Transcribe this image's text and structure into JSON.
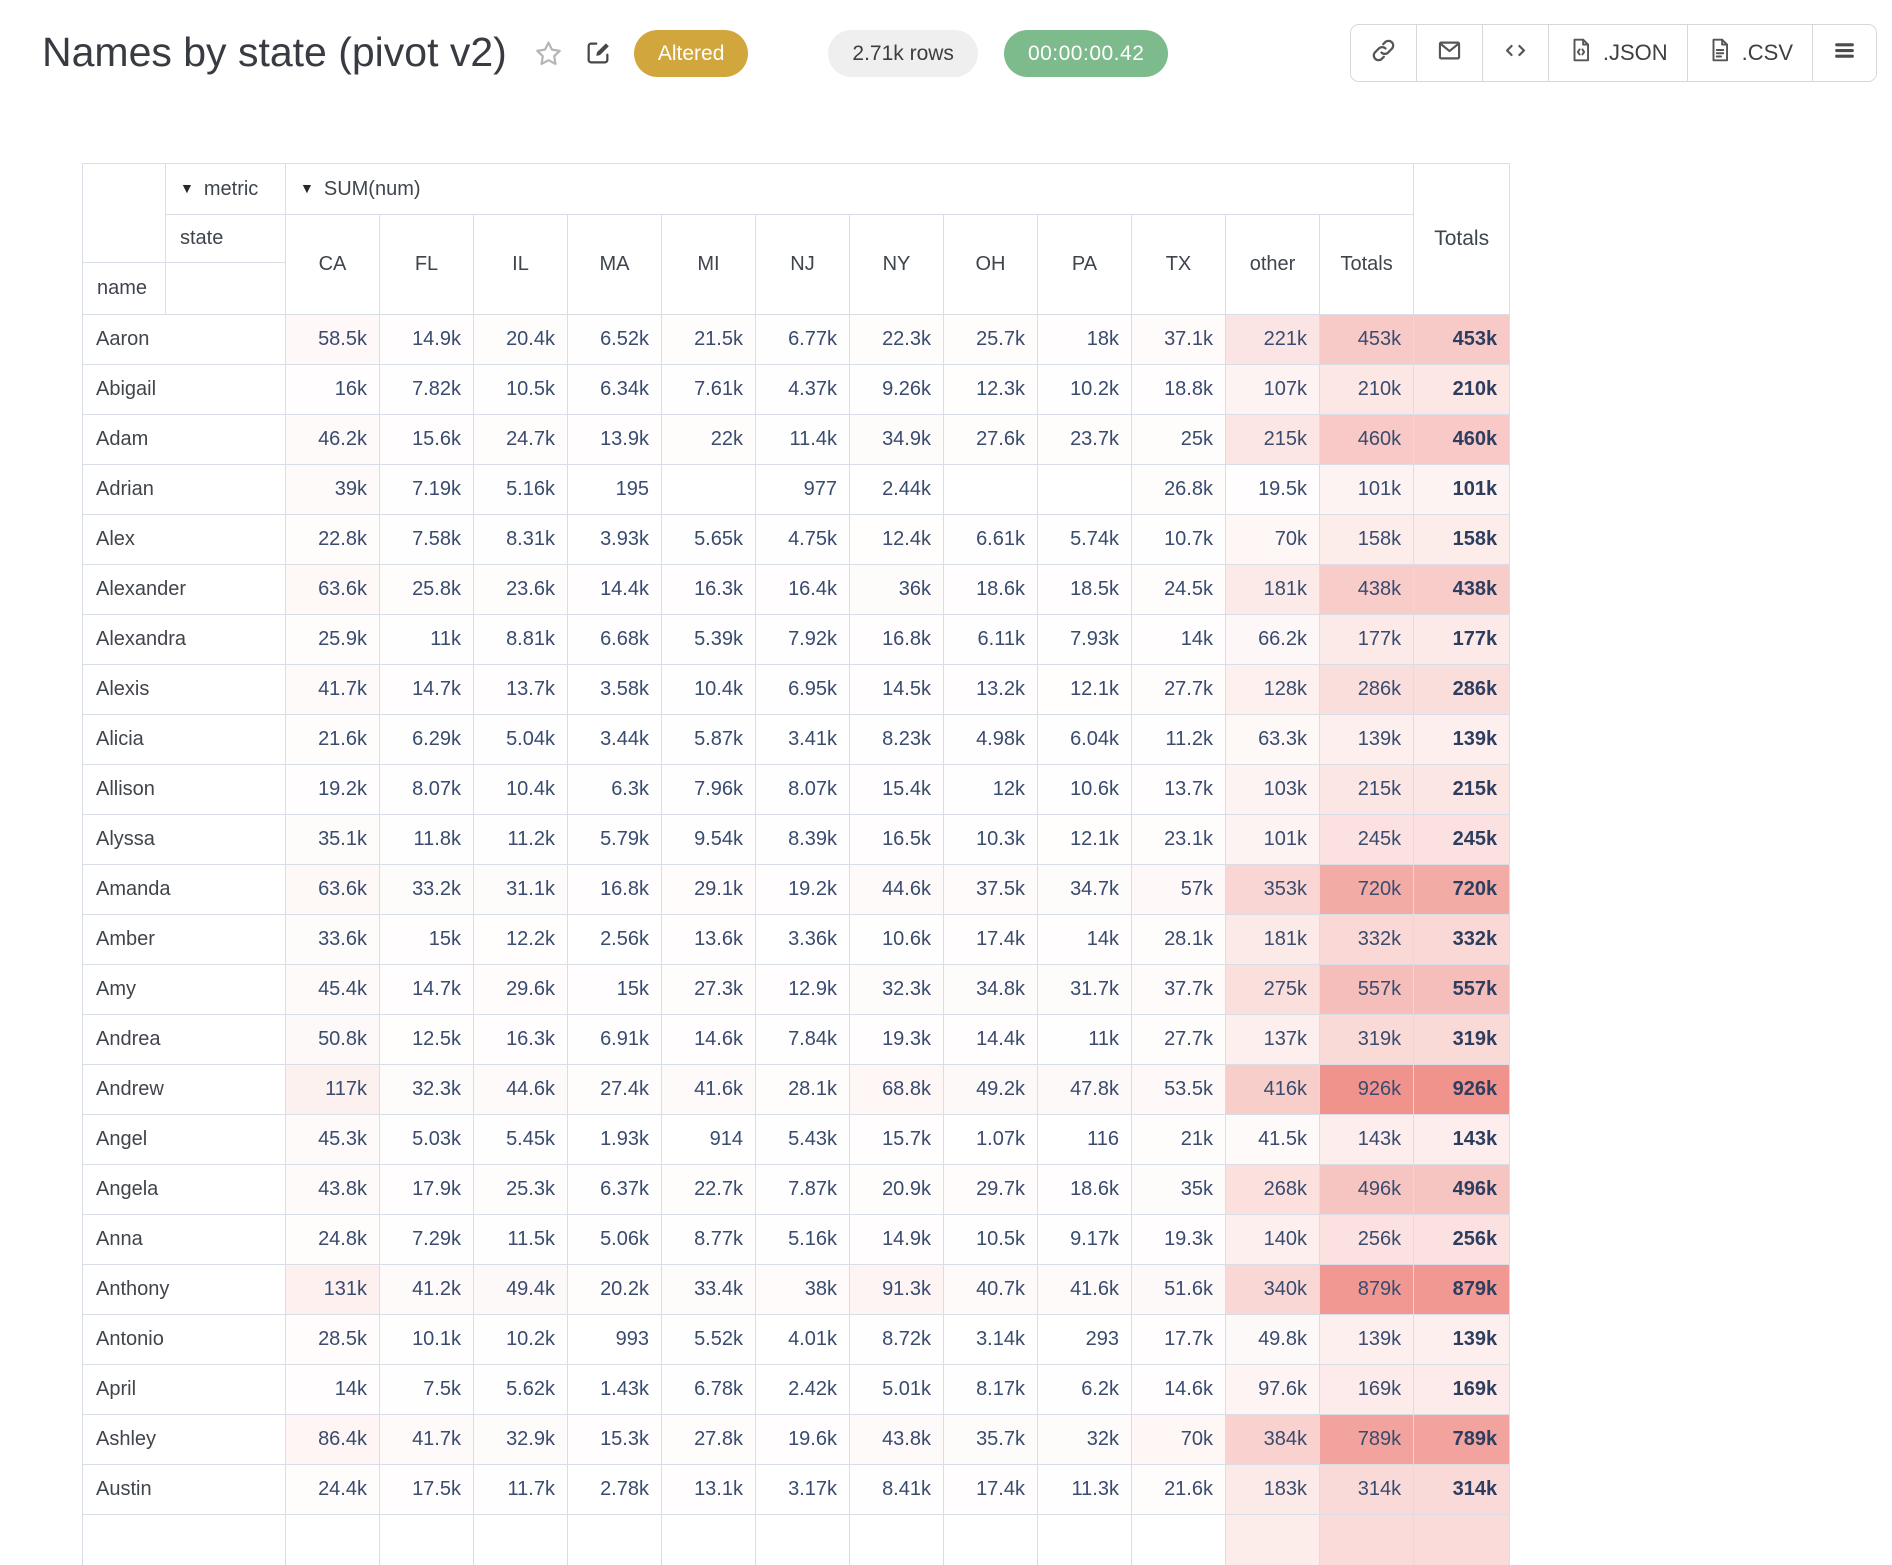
{
  "page": {
    "title": "Names by state (pivot v2)",
    "status_badge": "Altered",
    "rows_count": "2.71k rows",
    "runtime": "00:00:00.42"
  },
  "toolbar": {
    "json_label": ".JSON",
    "csv_label": ".CSV"
  },
  "icons": {
    "dropdown": "▼"
  },
  "colors": {
    "altered_bg": "#d1a63c",
    "rows_bg": "#efefef",
    "runtime_bg": "#7dba8c",
    "heat_max_color": "#f0938c",
    "border": "#d8dde6",
    "value_text": "#394b6e"
  },
  "pivot": {
    "metric_label": "metric",
    "metric_value": "SUM(num)",
    "col_dimension": "state",
    "row_dimension": "name",
    "columns": [
      "CA",
      "FL",
      "IL",
      "MA",
      "MI",
      "NJ",
      "NY",
      "OH",
      "PA",
      "TX",
      "other",
      "Totals"
    ],
    "grand_totals_label": "Totals",
    "rows": [
      {
        "name": "Aaron",
        "values": [
          "58.5k",
          "14.9k",
          "20.4k",
          "6.52k",
          "21.5k",
          "6.77k",
          "22.3k",
          "25.7k",
          "18k",
          "37.1k",
          "221k",
          "453k"
        ],
        "total": "453k"
      },
      {
        "name": "Abigail",
        "values": [
          "16k",
          "7.82k",
          "10.5k",
          "6.34k",
          "7.61k",
          "4.37k",
          "9.26k",
          "12.3k",
          "10.2k",
          "18.8k",
          "107k",
          "210k"
        ],
        "total": "210k"
      },
      {
        "name": "Adam",
        "values": [
          "46.2k",
          "15.6k",
          "24.7k",
          "13.9k",
          "22k",
          "11.4k",
          "34.9k",
          "27.6k",
          "23.7k",
          "25k",
          "215k",
          "460k"
        ],
        "total": "460k"
      },
      {
        "name": "Adrian",
        "values": [
          "39k",
          "7.19k",
          "5.16k",
          "195",
          "",
          "977",
          "2.44k",
          "",
          "",
          "26.8k",
          "19.5k",
          "101k"
        ],
        "total": "101k"
      },
      {
        "name": "Alex",
        "values": [
          "22.8k",
          "7.58k",
          "8.31k",
          "3.93k",
          "5.65k",
          "4.75k",
          "12.4k",
          "6.61k",
          "5.74k",
          "10.7k",
          "70k",
          "158k"
        ],
        "total": "158k"
      },
      {
        "name": "Alexander",
        "values": [
          "63.6k",
          "25.8k",
          "23.6k",
          "14.4k",
          "16.3k",
          "16.4k",
          "36k",
          "18.6k",
          "18.5k",
          "24.5k",
          "181k",
          "438k"
        ],
        "total": "438k"
      },
      {
        "name": "Alexandra",
        "values": [
          "25.9k",
          "11k",
          "8.81k",
          "6.68k",
          "5.39k",
          "7.92k",
          "16.8k",
          "6.11k",
          "7.93k",
          "14k",
          "66.2k",
          "177k"
        ],
        "total": "177k"
      },
      {
        "name": "Alexis",
        "values": [
          "41.7k",
          "14.7k",
          "13.7k",
          "3.58k",
          "10.4k",
          "6.95k",
          "14.5k",
          "13.2k",
          "12.1k",
          "27.7k",
          "128k",
          "286k"
        ],
        "total": "286k"
      },
      {
        "name": "Alicia",
        "values": [
          "21.6k",
          "6.29k",
          "5.04k",
          "3.44k",
          "5.87k",
          "3.41k",
          "8.23k",
          "4.98k",
          "6.04k",
          "11.2k",
          "63.3k",
          "139k"
        ],
        "total": "139k"
      },
      {
        "name": "Allison",
        "values": [
          "19.2k",
          "8.07k",
          "10.4k",
          "6.3k",
          "7.96k",
          "8.07k",
          "15.4k",
          "12k",
          "10.6k",
          "13.7k",
          "103k",
          "215k"
        ],
        "total": "215k"
      },
      {
        "name": "Alyssa",
        "values": [
          "35.1k",
          "11.8k",
          "11.2k",
          "5.79k",
          "9.54k",
          "8.39k",
          "16.5k",
          "10.3k",
          "12.1k",
          "23.1k",
          "101k",
          "245k"
        ],
        "total": "245k"
      },
      {
        "name": "Amanda",
        "values": [
          "63.6k",
          "33.2k",
          "31.1k",
          "16.8k",
          "29.1k",
          "19.2k",
          "44.6k",
          "37.5k",
          "34.7k",
          "57k",
          "353k",
          "720k"
        ],
        "total": "720k"
      },
      {
        "name": "Amber",
        "values": [
          "33.6k",
          "15k",
          "12.2k",
          "2.56k",
          "13.6k",
          "3.36k",
          "10.6k",
          "17.4k",
          "14k",
          "28.1k",
          "181k",
          "332k"
        ],
        "total": "332k"
      },
      {
        "name": "Amy",
        "values": [
          "45.4k",
          "14.7k",
          "29.6k",
          "15k",
          "27.3k",
          "12.9k",
          "32.3k",
          "34.8k",
          "31.7k",
          "37.7k",
          "275k",
          "557k"
        ],
        "total": "557k"
      },
      {
        "name": "Andrea",
        "values": [
          "50.8k",
          "12.5k",
          "16.3k",
          "6.91k",
          "14.6k",
          "7.84k",
          "19.3k",
          "14.4k",
          "11k",
          "27.7k",
          "137k",
          "319k"
        ],
        "total": "319k"
      },
      {
        "name": "Andrew",
        "values": [
          "117k",
          "32.3k",
          "44.6k",
          "27.4k",
          "41.6k",
          "28.1k",
          "68.8k",
          "49.2k",
          "47.8k",
          "53.5k",
          "416k",
          "926k"
        ],
        "total": "926k"
      },
      {
        "name": "Angel",
        "values": [
          "45.3k",
          "5.03k",
          "5.45k",
          "1.93k",
          "914",
          "5.43k",
          "15.7k",
          "1.07k",
          "116",
          "21k",
          "41.5k",
          "143k"
        ],
        "total": "143k"
      },
      {
        "name": "Angela",
        "values": [
          "43.8k",
          "17.9k",
          "25.3k",
          "6.37k",
          "22.7k",
          "7.87k",
          "20.9k",
          "29.7k",
          "18.6k",
          "35k",
          "268k",
          "496k"
        ],
        "total": "496k"
      },
      {
        "name": "Anna",
        "values": [
          "24.8k",
          "7.29k",
          "11.5k",
          "5.06k",
          "8.77k",
          "5.16k",
          "14.9k",
          "10.5k",
          "9.17k",
          "19.3k",
          "140k",
          "256k"
        ],
        "total": "256k"
      },
      {
        "name": "Anthony",
        "values": [
          "131k",
          "41.2k",
          "49.4k",
          "20.2k",
          "33.4k",
          "38k",
          "91.3k",
          "40.7k",
          "41.6k",
          "51.6k",
          "340k",
          "879k"
        ],
        "total": "879k"
      },
      {
        "name": "Antonio",
        "values": [
          "28.5k",
          "10.1k",
          "10.2k",
          "993",
          "5.52k",
          "4.01k",
          "8.72k",
          "3.14k",
          "293",
          "17.7k",
          "49.8k",
          "139k"
        ],
        "total": "139k"
      },
      {
        "name": "April",
        "values": [
          "14k",
          "7.5k",
          "5.62k",
          "1.43k",
          "6.78k",
          "2.42k",
          "5.01k",
          "8.17k",
          "6.2k",
          "14.6k",
          "97.6k",
          "169k"
        ],
        "total": "169k"
      },
      {
        "name": "Ashley",
        "values": [
          "86.4k",
          "41.7k",
          "32.9k",
          "15.3k",
          "27.8k",
          "19.6k",
          "43.8k",
          "35.7k",
          "32k",
          "70k",
          "384k",
          "789k"
        ],
        "total": "789k"
      },
      {
        "name": "Austin",
        "values": [
          "24.4k",
          "17.5k",
          "11.7k",
          "2.78k",
          "13.1k",
          "3.17k",
          "8.41k",
          "17.4k",
          "11.3k",
          "21.6k",
          "183k",
          "314k"
        ],
        "total": "314k"
      }
    ]
  }
}
